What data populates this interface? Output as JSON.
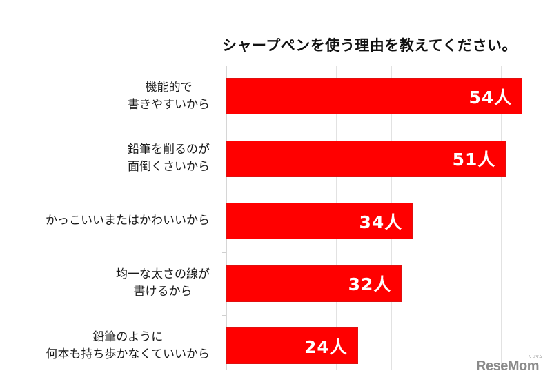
{
  "chart_data": {
    "type": "bar",
    "orientation": "horizontal",
    "title": "シャープペンを使う理由を教えてください。",
    "categories": [
      "機能的で\n書きやすいから",
      "鉛筆を削るのが\n面倒くさいから",
      "かっこいいまたはかわいいから",
      "均一な太さの線が\n書けるから",
      "鉛筆のように\n何本も持ち歩かなくていいから"
    ],
    "values": [
      54,
      51,
      34,
      32,
      24
    ],
    "value_labels": [
      "54人",
      "51人",
      "34人",
      "32人",
      "24人"
    ],
    "unit": "人",
    "xlabel": "",
    "ylabel": "",
    "xlim": [
      0,
      60
    ],
    "grid": true,
    "grid_step": 10,
    "bar_color": "#ff0000",
    "legend": null
  },
  "title": "シャープペンを使う理由を教えてください。",
  "categories": [
    {
      "line1": "機能的で",
      "line2": "書きやすいから",
      "label": "54人"
    },
    {
      "line1": "鉛筆を削るのが",
      "line2": "面倒くさいから",
      "label": "51人"
    },
    {
      "line1": "かっこいいまたはかわいいから",
      "line2": "",
      "label": "34人"
    },
    {
      "line1": "均一な太さの線が",
      "line2": "書けるから",
      "label": "32人"
    },
    {
      "line1": "鉛筆のように",
      "line2": "何本も持ち歩かなくていいから",
      "label": "24人"
    }
  ],
  "watermark": {
    "text": "ReseMom",
    "sub": "リセマム"
  }
}
